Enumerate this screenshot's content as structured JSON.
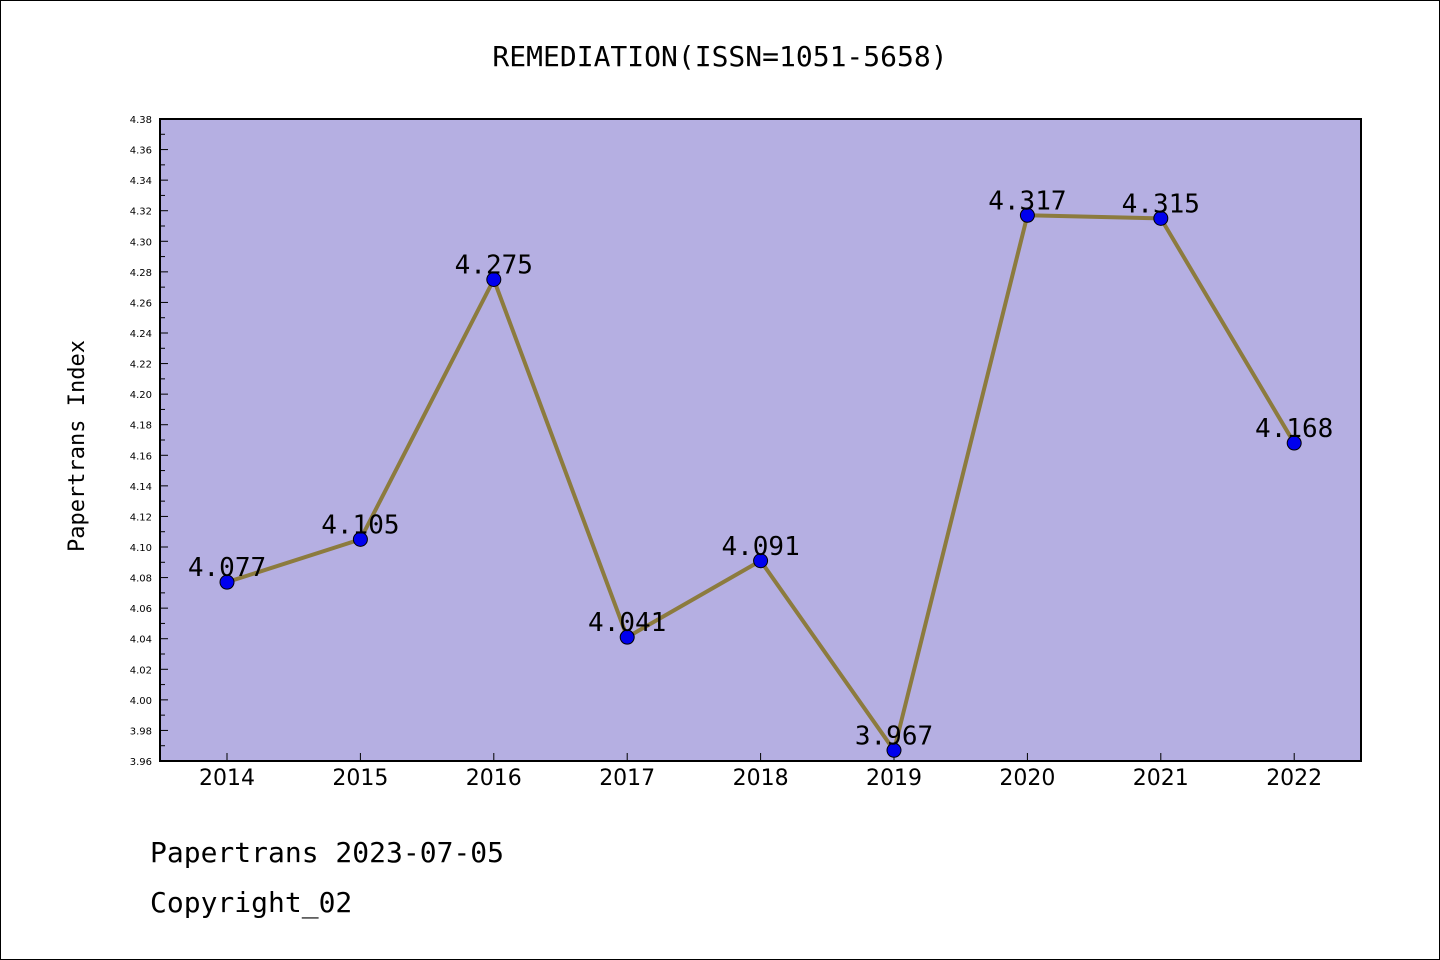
{
  "chart_data": {
    "type": "line",
    "title": "REMEDIATION(ISSN=1051-5658)",
    "xlabel": "",
    "ylabel": "Papertrans Index",
    "categories": [
      "2014",
      "2015",
      "2016",
      "2017",
      "2018",
      "2019",
      "2020",
      "2021",
      "2022"
    ],
    "values": [
      4.077,
      4.105,
      4.275,
      4.041,
      4.091,
      3.967,
      4.317,
      4.315,
      4.168
    ],
    "data_labels": [
      "4.077",
      "4.105",
      "4.275",
      "4.041",
      "4.091",
      "3.967",
      "4.317",
      "4.315",
      "4.168"
    ],
    "ylim": [
      3.96,
      4.38
    ],
    "y_ticks": [
      "3.96",
      "3.98",
      "4.00",
      "4.02",
      "4.04",
      "4.06",
      "4.08",
      "4.10",
      "4.12",
      "4.14",
      "4.16",
      "4.18",
      "4.20",
      "4.22",
      "4.24",
      "4.26",
      "4.28",
      "4.30",
      "4.32",
      "4.34",
      "4.36",
      "4.38"
    ],
    "grid": false,
    "legend": "none",
    "colors": {
      "plot_background": "#b5afe2",
      "line": "#8c7b3e",
      "marker": "#0000ee"
    }
  },
  "footer": {
    "line1": "Papertrans 2023-07-05",
    "line2": "Copyright_02"
  }
}
